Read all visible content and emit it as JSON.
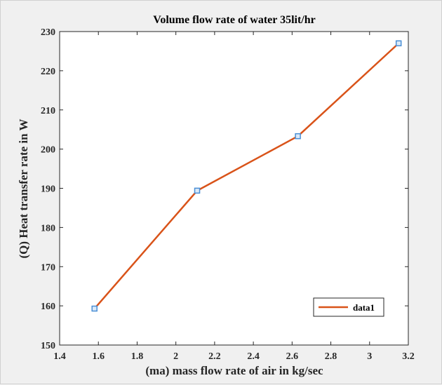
{
  "chart_data": {
    "type": "line",
    "title": "Volume flow rate of water 35lit/hr",
    "xlabel": "(ma) mass flow rate of air in kg/sec",
    "ylabel": "(Q) Heat transfer rate in W",
    "xlim": [
      1.4,
      3.2
    ],
    "ylim": [
      150,
      230
    ],
    "xticks": [
      1.4,
      1.6,
      1.8,
      2,
      2.2,
      2.4,
      2.6,
      2.8,
      3,
      3.2
    ],
    "yticks": [
      150,
      160,
      170,
      180,
      190,
      200,
      210,
      220,
      230
    ],
    "grid": false,
    "legend_position": "bottom-right",
    "series": [
      {
        "name": "data1",
        "x": [
          1.58,
          2.11,
          2.63,
          3.15
        ],
        "y": [
          159.3,
          189.4,
          203.3,
          227.0
        ],
        "line_color": "#d95319",
        "marker": "square",
        "marker_color": "#4a8fd6"
      }
    ]
  }
}
